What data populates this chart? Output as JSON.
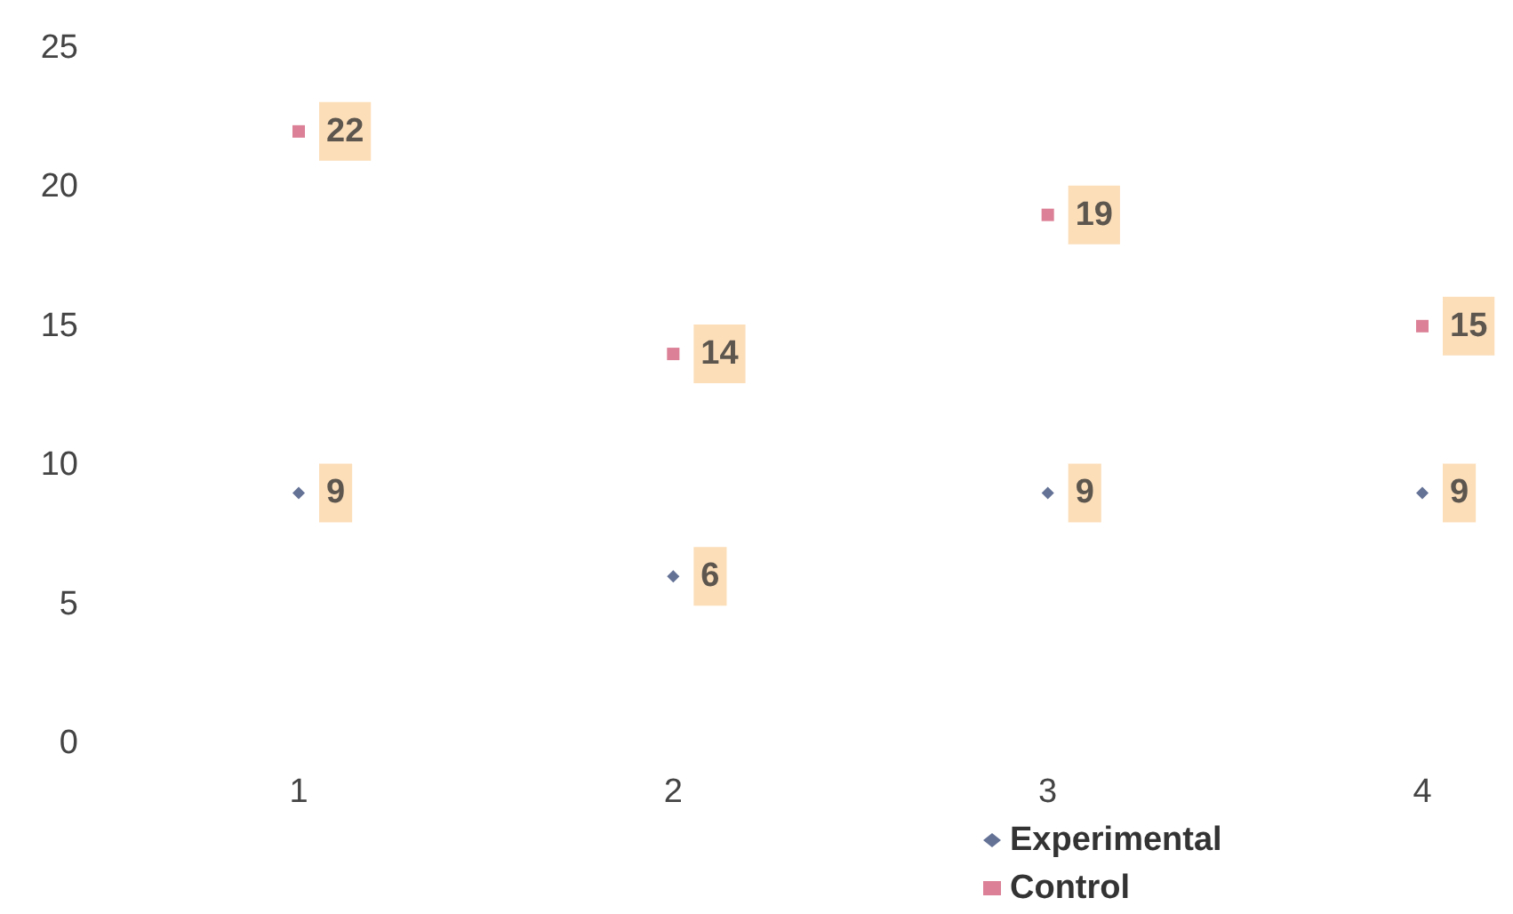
{
  "chart_data": {
    "type": "scatter",
    "categories": [
      "1",
      "2",
      "3",
      "4"
    ],
    "series": [
      {
        "name": "Experimental",
        "color": "#3d4f7c",
        "marker": "diamond",
        "values": [
          9,
          6,
          9,
          9
        ]
      },
      {
        "name": "Control",
        "color": "#d2607c",
        "marker": "square",
        "values": [
          22,
          14,
          19,
          15
        ]
      }
    ],
    "ylim": [
      0,
      25
    ],
    "yticks": [
      0,
      5,
      10,
      15,
      20,
      25
    ],
    "grid": false,
    "legend": "bottom",
    "data_labels": true
  }
}
